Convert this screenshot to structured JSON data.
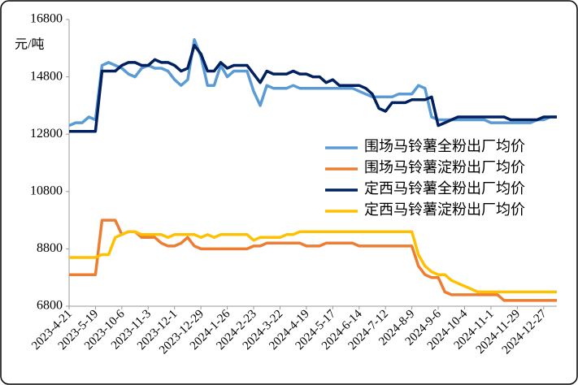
{
  "chart_data": {
    "type": "line",
    "y_label": "元/吨",
    "categories": [
      "2023-4-21",
      null,
      null,
      null,
      "2023-5-19",
      null,
      null,
      null,
      "2023-10-6",
      null,
      null,
      null,
      "2023-11-3",
      null,
      null,
      null,
      "2023-12-1",
      null,
      null,
      null,
      "2023-12-29",
      null,
      null,
      null,
      "2024-1-26",
      null,
      null,
      null,
      "2024-2-23",
      null,
      null,
      null,
      "2024-3-22",
      null,
      null,
      null,
      "2024-4-19",
      null,
      null,
      null,
      "2024-5-17",
      null,
      null,
      null,
      "2024-6-14",
      null,
      null,
      null,
      "2024-7-12",
      null,
      null,
      null,
      "2024-8-9",
      null,
      null,
      null,
      "2024-9-6",
      null,
      null,
      null,
      "2024-10-4",
      null,
      null,
      null,
      "2024-11-1",
      null,
      null,
      null,
      "2024-11-29",
      null,
      null,
      null,
      "2024-12-27",
      null,
      null
    ],
    "series": [
      {
        "name": "围场马铃薯全粉出厂均价",
        "color": "#5b9bd5",
        "values": [
          13100,
          13200,
          13200,
          13400,
          13300,
          15200,
          15300,
          15200,
          15100,
          14900,
          14800,
          15100,
          15200,
          15100,
          15100,
          15000,
          14700,
          14500,
          14700,
          16100,
          15500,
          14500,
          14500,
          15200,
          14800,
          15000,
          15000,
          15000,
          14300,
          13800,
          14500,
          14400,
          14400,
          14400,
          14500,
          14400,
          14400,
          14400,
          14400,
          14400,
          14400,
          14400,
          14400,
          14400,
          14300,
          14200,
          14100,
          14100,
          14100,
          14100,
          14200,
          14200,
          14200,
          14500,
          14400,
          13400,
          13300,
          13300,
          13300,
          13300,
          13300,
          13300,
          13300,
          13300,
          13200,
          13200,
          13200,
          13200,
          13200,
          13200,
          13200,
          13300,
          13300,
          13400,
          13400
        ]
      },
      {
        "name": "围场马铃薯淀粉出厂均价",
        "color": "#ed7d31",
        "values": [
          7900,
          7900,
          7900,
          7900,
          7900,
          9800,
          9800,
          9800,
          9300,
          9400,
          9400,
          9200,
          9200,
          9200,
          9000,
          8900,
          8900,
          9000,
          9200,
          8900,
          8800,
          8800,
          8800,
          8800,
          8800,
          8800,
          8800,
          8800,
          8900,
          8900,
          9000,
          9000,
          9000,
          9000,
          9000,
          9000,
          8900,
          8900,
          8900,
          9000,
          9000,
          9000,
          9000,
          9000,
          8900,
          8900,
          8900,
          8900,
          8900,
          8900,
          8900,
          8900,
          8900,
          8200,
          7900,
          7800,
          7800,
          7300,
          7200,
          7200,
          7200,
          7200,
          7200,
          7200,
          7200,
          7200,
          7000,
          7000,
          7000,
          7000,
          7000,
          7000,
          7000,
          7000,
          7000
        ]
      },
      {
        "name": "定西马铃薯全粉出厂均价",
        "color": "#002060",
        "values": [
          12900,
          12900,
          12900,
          12900,
          12900,
          15000,
          15000,
          15000,
          15200,
          15300,
          15300,
          15200,
          15200,
          15400,
          15300,
          15300,
          15200,
          15000,
          15100,
          15900,
          15600,
          15000,
          15000,
          15300,
          15100,
          15200,
          15200,
          15200,
          14900,
          14600,
          15000,
          14900,
          14900,
          14900,
          15000,
          14900,
          14900,
          14800,
          14800,
          14600,
          14700,
          14500,
          14500,
          14500,
          14500,
          14400,
          14200,
          13700,
          13600,
          13900,
          13900,
          13900,
          14000,
          14000,
          14000,
          14100,
          13100,
          13200,
          13300,
          13400,
          13400,
          13400,
          13400,
          13400,
          13400,
          13400,
          13400,
          13300,
          13300,
          13300,
          13300,
          13300,
          13400,
          13400,
          13400
        ]
      },
      {
        "name": "定西马铃薯淀粉出厂均价",
        "color": "#ffc000",
        "values": [
          8500,
          8500,
          8500,
          8500,
          8500,
          8600,
          8600,
          9200,
          9300,
          9400,
          9400,
          9300,
          9300,
          9300,
          9300,
          9200,
          9300,
          9300,
          9300,
          9300,
          9200,
          9300,
          9200,
          9300,
          9300,
          9300,
          9300,
          9300,
          9100,
          9200,
          9200,
          9200,
          9200,
          9300,
          9300,
          9400,
          9400,
          9400,
          9400,
          9400,
          9400,
          9400,
          9400,
          9400,
          9400,
          9400,
          9400,
          9400,
          9400,
          9400,
          9400,
          9400,
          9400,
          8600,
          8200,
          8000,
          7900,
          7900,
          7700,
          7600,
          7500,
          7400,
          7300,
          7300,
          7300,
          7300,
          7300,
          7300,
          7300,
          7300,
          7300,
          7300,
          7300,
          7300,
          7300
        ]
      }
    ],
    "ylim": [
      6800,
      16800
    ],
    "yticks": [
      6800,
      8800,
      10800,
      12800,
      14800,
      16800
    ],
    "legend": "right",
    "grid": false
  }
}
